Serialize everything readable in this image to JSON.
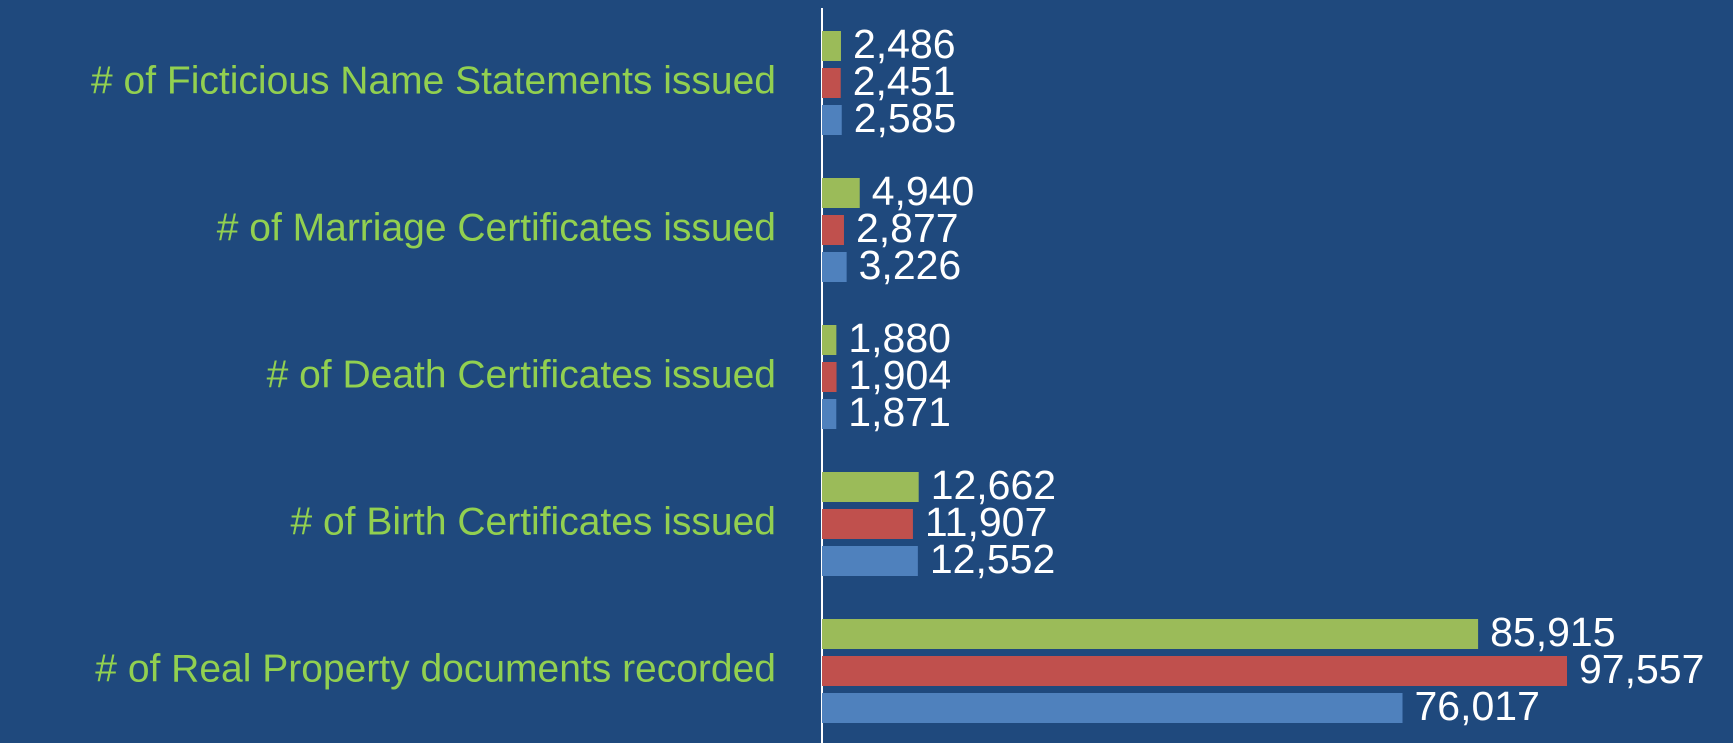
{
  "chart_data": {
    "type": "hbar",
    "categories": [
      "# of Ficticious Name Statements issued",
      "# of Marriage Certificates issued",
      "# of Death Certificates issued",
      "# of Birth Certificates issued",
      "# of Real Property documents recorded"
    ],
    "series": [
      {
        "color": "#9bbb59",
        "values": [
          2486,
          4940,
          1880,
          12662,
          85915
        ],
        "value_labels": [
          "2,486",
          "4,940",
          "1,880",
          "12,662",
          "85,915"
        ]
      },
      {
        "color": "#c0504d",
        "values": [
          2451,
          2877,
          1904,
          11907,
          97557
        ],
        "value_labels": [
          "2,451",
          "2,877",
          "1,904",
          "11,907",
          "97,557"
        ]
      },
      {
        "color": "#4f81bd",
        "values": [
          2585,
          3226,
          1871,
          12552,
          76017
        ],
        "value_labels": [
          "2,585",
          "3,226",
          "1,871",
          "12,552",
          "76,017"
        ]
      }
    ]
  }
}
